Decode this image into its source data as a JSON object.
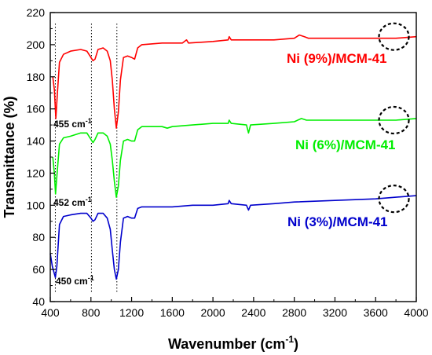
{
  "chart_data": {
    "type": "line",
    "title": "",
    "xlabel": "Wavenumber (cm",
    "xlabel_sup": "-1",
    "xlabel_end": ")",
    "ylabel": "Transmittance (%)",
    "xlim": [
      400,
      4000
    ],
    "ylim": [
      40,
      220
    ],
    "x_ticks": [
      "400",
      "800",
      "1200",
      "1600",
      "2000",
      "2400",
      "2800",
      "3200",
      "3600",
      "4000"
    ],
    "y_ticks": [
      "40",
      "60",
      "80",
      "100",
      "120",
      "140",
      "160",
      "180",
      "200",
      "220"
    ],
    "grid": false,
    "series": [
      {
        "name": "Ni (9%)/MCM-41",
        "color": "#ff0000",
        "points": [
          [
            425,
            180
          ],
          [
            440,
            172
          ],
          [
            455,
            154
          ],
          [
            470,
            170
          ],
          [
            490,
            189
          ],
          [
            530,
            194
          ],
          [
            600,
            196
          ],
          [
            700,
            197
          ],
          [
            760,
            196
          ],
          [
            800,
            192
          ],
          [
            820,
            190
          ],
          [
            840,
            191
          ],
          [
            870,
            197
          ],
          [
            920,
            198
          ],
          [
            960,
            196
          ],
          [
            990,
            190
          ],
          [
            1010,
            178
          ],
          [
            1030,
            160
          ],
          [
            1050,
            148
          ],
          [
            1070,
            158
          ],
          [
            1090,
            178
          ],
          [
            1120,
            192
          ],
          [
            1160,
            193
          ],
          [
            1200,
            192
          ],
          [
            1230,
            191
          ],
          [
            1260,
            198
          ],
          [
            1300,
            200
          ],
          [
            1500,
            201
          ],
          [
            1700,
            201
          ],
          [
            1740,
            203
          ],
          [
            1760,
            201
          ],
          [
            2000,
            202
          ],
          [
            2150,
            203
          ],
          [
            2160,
            205
          ],
          [
            2180,
            203
          ],
          [
            2350,
            203
          ],
          [
            2600,
            203
          ],
          [
            2800,
            204
          ],
          [
            2850,
            206
          ],
          [
            2900,
            205
          ],
          [
            2940,
            204
          ],
          [
            3200,
            204
          ],
          [
            3600,
            204
          ],
          [
            3800,
            204
          ],
          [
            4000,
            205
          ]
        ]
      },
      {
        "name": "Ni (6%)/MCM-41",
        "color": "#00ee00",
        "points": [
          [
            425,
            130
          ],
          [
            440,
            120
          ],
          [
            452,
            107
          ],
          [
            465,
            118
          ],
          [
            490,
            138
          ],
          [
            530,
            142
          ],
          [
            600,
            143
          ],
          [
            700,
            145
          ],
          [
            760,
            145
          ],
          [
            800,
            141
          ],
          [
            820,
            139
          ],
          [
            840,
            141
          ],
          [
            870,
            145
          ],
          [
            920,
            145
          ],
          [
            960,
            143
          ],
          [
            990,
            138
          ],
          [
            1010,
            128
          ],
          [
            1030,
            115
          ],
          [
            1050,
            105
          ],
          [
            1070,
            112
          ],
          [
            1090,
            128
          ],
          [
            1120,
            140
          ],
          [
            1160,
            141
          ],
          [
            1200,
            140
          ],
          [
            1230,
            140
          ],
          [
            1260,
            147
          ],
          [
            1300,
            149
          ],
          [
            1500,
            149
          ],
          [
            1550,
            148
          ],
          [
            1600,
            149
          ],
          [
            1800,
            150
          ],
          [
            2000,
            151
          ],
          [
            2150,
            151
          ],
          [
            2160,
            153
          ],
          [
            2180,
            151
          ],
          [
            2330,
            150
          ],
          [
            2350,
            145
          ],
          [
            2370,
            150
          ],
          [
            2600,
            151
          ],
          [
            2800,
            152
          ],
          [
            2870,
            154
          ],
          [
            2920,
            153
          ],
          [
            3200,
            153
          ],
          [
            3600,
            153
          ],
          [
            3800,
            153
          ],
          [
            4000,
            154
          ]
        ]
      },
      {
        "name": "Ni (3%)/MCM-41",
        "color": "#0000cc",
        "points": [
          [
            400,
            70
          ],
          [
            420,
            62
          ],
          [
            450,
            55
          ],
          [
            465,
            62
          ],
          [
            490,
            88
          ],
          [
            530,
            93
          ],
          [
            600,
            94
          ],
          [
            700,
            95
          ],
          [
            760,
            95
          ],
          [
            800,
            92
          ],
          [
            820,
            90
          ],
          [
            840,
            91
          ],
          [
            870,
            95
          ],
          [
            920,
            95
          ],
          [
            960,
            92
          ],
          [
            990,
            85
          ],
          [
            1010,
            72
          ],
          [
            1030,
            60
          ],
          [
            1050,
            54
          ],
          [
            1070,
            60
          ],
          [
            1090,
            77
          ],
          [
            1120,
            92
          ],
          [
            1160,
            93
          ],
          [
            1200,
            92
          ],
          [
            1230,
            92
          ],
          [
            1260,
            98
          ],
          [
            1300,
            99
          ],
          [
            1500,
            99
          ],
          [
            1600,
            99
          ],
          [
            1800,
            100
          ],
          [
            2000,
            100
          ],
          [
            2150,
            101
          ],
          [
            2160,
            103
          ],
          [
            2180,
            101
          ],
          [
            2330,
            100
          ],
          [
            2350,
            97
          ],
          [
            2370,
            100
          ],
          [
            2600,
            101
          ],
          [
            2800,
            102
          ],
          [
            3200,
            103
          ],
          [
            3600,
            104
          ],
          [
            3800,
            105
          ],
          [
            4000,
            106
          ]
        ]
      }
    ],
    "annotations": [
      {
        "text": "455 cm",
        "sup": "-1",
        "x": 455,
        "y": 154
      },
      {
        "text": "452 cm",
        "sup": "-1",
        "x": 452,
        "y": 107
      },
      {
        "text": "450 cm",
        "sup": "-1",
        "x": 450,
        "y": 55
      }
    ],
    "dotted_lines_x": [
      450,
      805,
      1055
    ],
    "dashed_circles": [
      {
        "x": 3780,
        "y": 205
      },
      {
        "x": 3780,
        "y": 153
      },
      {
        "x": 3780,
        "y": 104
      }
    ]
  }
}
